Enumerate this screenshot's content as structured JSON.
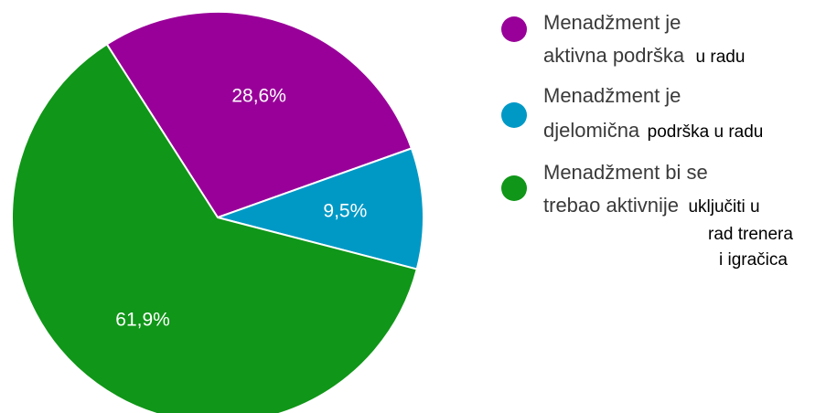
{
  "chart_data": {
    "type": "pie",
    "slices": [
      {
        "label_lines": [
          "Menadžment je",
          "aktivna podrška",
          "u radu"
        ],
        "value": 28.6,
        "value_label": "28,6%",
        "color": "#990099"
      },
      {
        "label_lines": [
          "Menadžment je",
          "djelomična",
          "podrška u radu"
        ],
        "value": 9.5,
        "value_label": "9,5%",
        "color": "#0099c6"
      },
      {
        "label_lines": [
          "Menadžment bi se",
          "trebao aktivnije",
          "uključiti u",
          "rad trenera",
          "i igračica"
        ],
        "value": 61.9,
        "value_label": "61,9%",
        "color": "#109618"
      }
    ],
    "legend_position": "right"
  }
}
